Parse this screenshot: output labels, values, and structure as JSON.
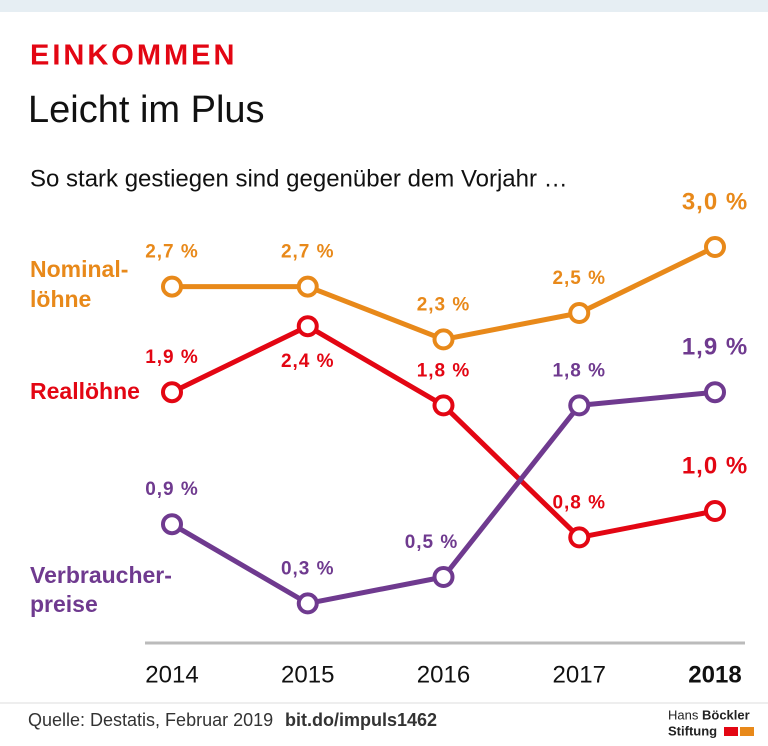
{
  "chart_data": {
    "type": "line",
    "kicker": "EINKOMMEN",
    "title": "Leicht im Plus",
    "subtitle": "So stark gestiegen sind gegenüber dem Vorjahr …",
    "categories": [
      "2014",
      "2015",
      "2016",
      "2017",
      "2018"
    ],
    "ylim": [
      0,
      3.0
    ],
    "series": [
      {
        "name": [
          "Nominal-",
          "löhne"
        ],
        "color": "#e8891a",
        "values": [
          2.7,
          2.7,
          2.3,
          2.5,
          3.0
        ],
        "value_labels": [
          "2,7 %",
          "2,7 %",
          "2,3 %",
          "2,5 %",
          "3,0 %"
        ]
      },
      {
        "name": [
          "Reallöhne"
        ],
        "color": "#e30613",
        "values": [
          1.9,
          2.4,
          1.8,
          0.8,
          1.0
        ],
        "value_labels": [
          "1,9 %",
          "2,4 %",
          "1,8 %",
          "0,8 %",
          "1,0 %"
        ]
      },
      {
        "name": [
          "Verbraucher-",
          "preise"
        ],
        "color": "#6f3a8f",
        "values": [
          0.9,
          0.3,
          0.5,
          1.8,
          1.9
        ],
        "value_labels": [
          "0,9 %",
          "0,3 %",
          "0,5 %",
          "1,8 %",
          "1,9 %"
        ]
      }
    ],
    "source": "Quelle: Destatis, Februar 2019",
    "link": "bit.do/impuls1462",
    "logo": [
      "Hans",
      "Böckler",
      "Stiftung"
    ]
  }
}
